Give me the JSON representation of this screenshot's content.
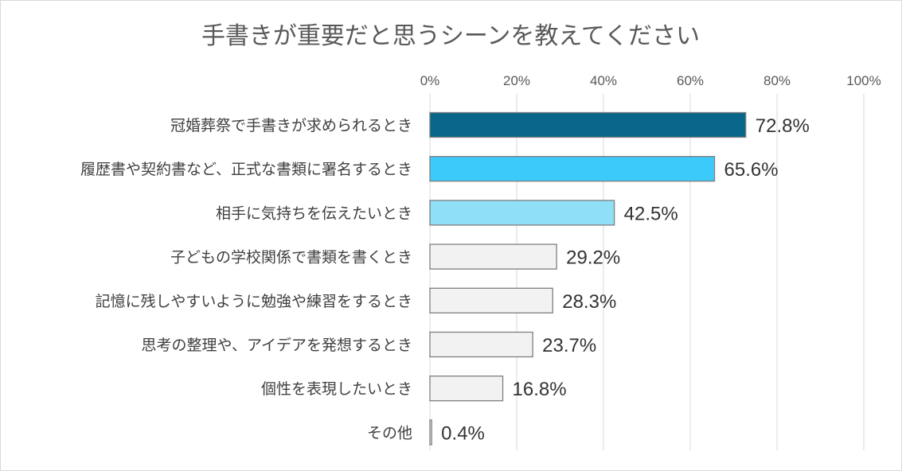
{
  "chart_data": {
    "type": "bar",
    "orientation": "horizontal",
    "title": "手書きが重要だと思うシーンを教えてください",
    "categories": [
      "冠婚葬祭で手書きが求められるとき",
      "履歴書や契約書など、正式な書類に署名するとき",
      "相手に気持ちを伝えたいとき",
      "子どもの学校関係で書類を書くとき",
      "記憶に残しやすいように勉強や練習をするとき",
      "思考の整理や、アイデアを発想するとき",
      "個性を表現したいとき",
      "その他"
    ],
    "values": [
      72.8,
      65.6,
      42.5,
      29.2,
      28.3,
      23.7,
      16.8,
      0.4
    ],
    "data_labels": [
      "72.8%",
      "65.6%",
      "42.5%",
      "29.2%",
      "28.3%",
      "23.7%",
      "16.8%",
      "0.4%"
    ],
    "bar_colors": [
      "#07668a",
      "#3ccafa",
      "#8fdff9",
      "#f2f2f2",
      "#f2f2f2",
      "#f2f2f2",
      "#f2f2f2",
      "#f2f2f2"
    ],
    "xlim": [
      0,
      100
    ],
    "xticks": [
      0,
      20,
      40,
      60,
      80,
      100
    ],
    "xtick_labels": [
      "0%",
      "20%",
      "40%",
      "60%",
      "80%",
      "100%"
    ],
    "axis_position": "top",
    "grid": true,
    "legend": "none"
  }
}
